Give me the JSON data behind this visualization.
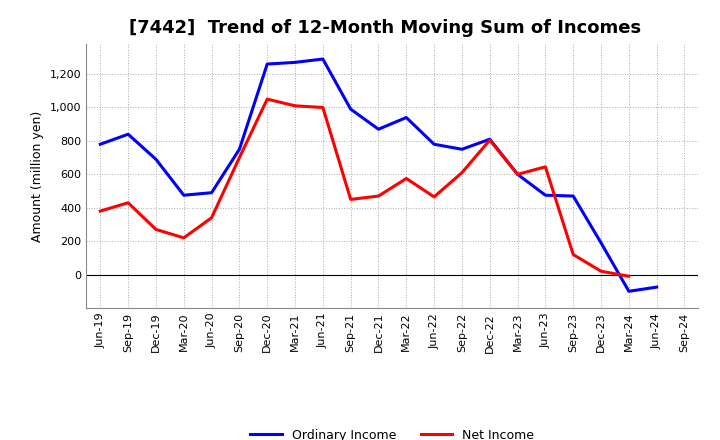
{
  "title": "[7442]  Trend of 12-Month Moving Sum of Incomes",
  "ylabel": "Amount (million yen)",
  "ylim": [
    -200,
    1380
  ],
  "yticks": [
    0,
    200,
    400,
    600,
    800,
    1000,
    1200
  ],
  "background_color": "#ffffff",
  "plot_bg_color": "#ffffff",
  "grid_color": "#aaaaaa",
  "ordinary_income_color": "#0000ff",
  "net_income_color": "#ff0000",
  "labels": [
    "Jun-19",
    "Sep-19",
    "Dec-19",
    "Mar-20",
    "Jun-20",
    "Sep-20",
    "Dec-20",
    "Mar-21",
    "Jun-21",
    "Sep-21",
    "Dec-21",
    "Mar-22",
    "Jun-22",
    "Sep-22",
    "Dec-22",
    "Mar-23",
    "Jun-23",
    "Sep-23",
    "Dec-23",
    "Mar-24",
    "Jun-24",
    "Sep-24"
  ],
  "ordinary_income": [
    780,
    840,
    690,
    475,
    490,
    750,
    1260,
    1270,
    1290,
    990,
    870,
    940,
    780,
    750,
    810,
    600,
    475,
    470,
    190,
    -100,
    -75,
    null
  ],
  "net_income": [
    380,
    430,
    270,
    220,
    340,
    700,
    1050,
    1010,
    1000,
    450,
    470,
    575,
    465,
    610,
    805,
    600,
    645,
    120,
    20,
    -10,
    null,
    null
  ],
  "title_fontsize": 13,
  "legend_fontsize": 9,
  "tick_fontsize": 8,
  "ylabel_fontsize": 9,
  "linewidth": 2.2
}
